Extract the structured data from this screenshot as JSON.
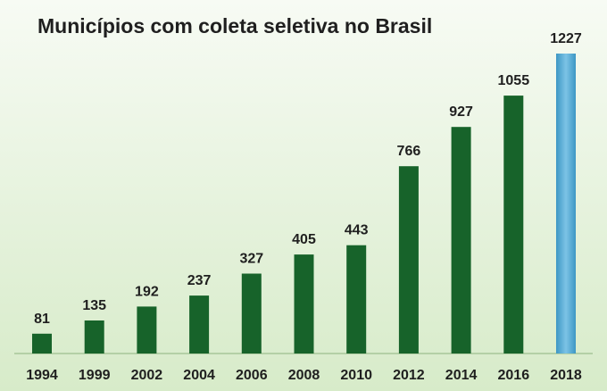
{
  "chart_data": {
    "type": "bar",
    "title": "Municípios com coleta seletiva no Brasil",
    "xlabel": "",
    "ylabel": "",
    "categories": [
      "1994",
      "1999",
      "2002",
      "2004",
      "2006",
      "2008",
      "2010",
      "2012",
      "2014",
      "2016",
      "2018"
    ],
    "values": [
      81,
      135,
      192,
      237,
      327,
      405,
      443,
      766,
      927,
      1055,
      1227
    ],
    "value_labels": [
      "81",
      "135",
      "192",
      "237",
      "327",
      "405",
      "443",
      "766",
      "927",
      "1055",
      "1227"
    ],
    "ylim": [
      0,
      1227
    ],
    "grid": false,
    "legend": "none",
    "colors": {
      "bar": "#17632a",
      "highlight": "#4aa8d2",
      "background_top": "#f7fbf4",
      "background_bottom": "#d7ebc9",
      "baseline": "#a8c79a"
    },
    "highlight_index": 10
  }
}
